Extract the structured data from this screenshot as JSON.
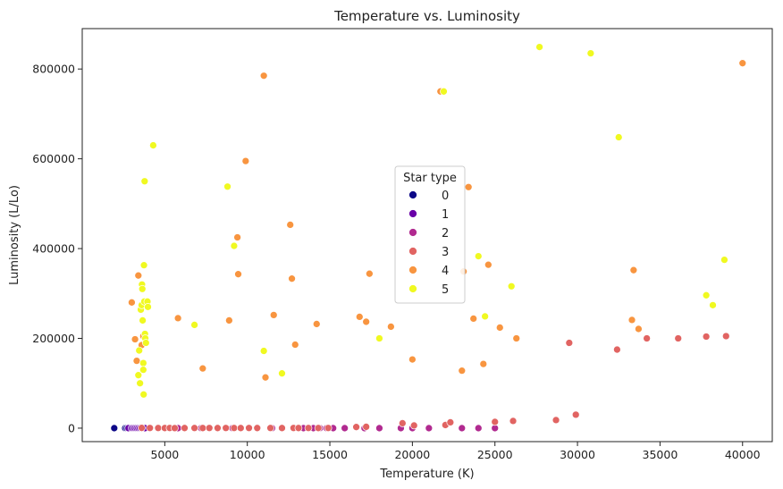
{
  "chart_data": {
    "type": "scatter",
    "title": "Temperature vs. Luminosity",
    "xlabel": "Temperature (K)",
    "ylabel": "Luminosity (L/Lo)",
    "xlim": [
      0,
      41800
    ],
    "ylim": [
      -30000,
      890000
    ],
    "xticks": [
      5000,
      10000,
      15000,
      20000,
      25000,
      30000,
      35000,
      40000
    ],
    "yticks": [
      0,
      200000,
      400000,
      600000,
      800000
    ],
    "grid": false,
    "legend": {
      "title": "Star type",
      "placement": "center"
    },
    "series": [
      {
        "name": "0",
        "color": "#0d0887",
        "points": [
          [
            1939,
            0.0001
          ],
          [
            2600,
            0.0003
          ],
          [
            2700,
            0.0004
          ],
          [
            2800,
            0.0002
          ],
          [
            2900,
            0.0005
          ],
          [
            3000,
            0.0003
          ],
          [
            3050,
            0.0002
          ],
          [
            3100,
            0.0004
          ],
          [
            3150,
            0.0001
          ],
          [
            3200,
            0.0006
          ],
          [
            3300,
            0.0005
          ],
          [
            3350,
            0.0003
          ],
          [
            3400,
            0.0002
          ],
          [
            3450,
            0.0004
          ],
          [
            3500,
            0.0003
          ],
          [
            3550,
            0.0002
          ],
          [
            3600,
            0.0001
          ]
        ]
      },
      {
        "name": "1",
        "color": "#6a00a8",
        "points": [
          [
            2800,
            0.002
          ],
          [
            3000,
            0.003
          ],
          [
            3100,
            0.002
          ],
          [
            3200,
            0.004
          ],
          [
            3300,
            0.003
          ],
          [
            3400,
            0.002
          ],
          [
            3500,
            0.005
          ],
          [
            3600,
            0.004
          ],
          [
            3700,
            0.003
          ],
          [
            3800,
            0.002
          ]
        ]
      },
      {
        "name": "2",
        "color": "#b12a90",
        "points": [
          [
            5800,
            0.001
          ],
          [
            7200,
            0.002
          ],
          [
            8700,
            0.001
          ],
          [
            9100,
            0.002
          ],
          [
            10600,
            0.001
          ],
          [
            11500,
            0.002
          ],
          [
            12100,
            0.001
          ],
          [
            12800,
            0.002
          ],
          [
            13400,
            0.001
          ],
          [
            14000,
            0.002
          ],
          [
            14400,
            0.001
          ],
          [
            14800,
            0.002
          ],
          [
            15200,
            0.001
          ],
          [
            15900,
            0.002
          ],
          [
            17100,
            0.001
          ],
          [
            18000,
            0.002
          ],
          [
            19300,
            0.001
          ],
          [
            20000,
            0.002
          ],
          [
            21000,
            0.001
          ],
          [
            23000,
            0.002
          ],
          [
            24000,
            0.001
          ],
          [
            25000,
            0.002
          ]
        ]
      },
      {
        "name": "3",
        "color": "#e16462",
        "points": [
          [
            3600,
            500
          ],
          [
            4100,
            400
          ],
          [
            4600,
            300
          ],
          [
            5000,
            200
          ],
          [
            5300,
            350
          ],
          [
            5600,
            150
          ],
          [
            6200,
            250
          ],
          [
            6800,
            300
          ],
          [
            7300,
            200
          ],
          [
            7700,
            350
          ],
          [
            8200,
            250
          ],
          [
            8700,
            400
          ],
          [
            9200,
            300
          ],
          [
            9600,
            200
          ],
          [
            10100,
            350
          ],
          [
            10600,
            250
          ],
          [
            11400,
            300
          ],
          [
            12100,
            200
          ],
          [
            12800,
            350
          ],
          [
            13100,
            250
          ],
          [
            13700,
            300
          ],
          [
            14300,
            200
          ],
          [
            14900,
            350
          ],
          [
            16600,
            2500
          ],
          [
            17200,
            3000
          ],
          [
            19400,
            11000
          ],
          [
            20100,
            6000
          ],
          [
            22000,
            7000
          ],
          [
            22300,
            13000
          ],
          [
            25000,
            14000
          ],
          [
            26100,
            16000
          ],
          [
            28700,
            18000
          ],
          [
            29900,
            30000
          ],
          [
            29500,
            190000
          ],
          [
            32400,
            175000
          ],
          [
            34200,
            200000
          ],
          [
            36100,
            200000
          ],
          [
            37800,
            204000
          ],
          [
            39000,
            205000
          ]
        ]
      },
      {
        "name": "4",
        "color": "#f89540",
        "points": [
          [
            3000,
            280000
          ],
          [
            3200,
            198000
          ],
          [
            3300,
            150000
          ],
          [
            3400,
            340000
          ],
          [
            3600,
            185000
          ],
          [
            3700,
            205000
          ],
          [
            5800,
            245000
          ],
          [
            7300,
            133000
          ],
          [
            8900,
            240000
          ],
          [
            9400,
            425000
          ],
          [
            9450,
            343000
          ],
          [
            9900,
            595000
          ],
          [
            11000,
            785000
          ],
          [
            11100,
            113000
          ],
          [
            11600,
            252000
          ],
          [
            12600,
            453000
          ],
          [
            12700,
            333000
          ],
          [
            12900,
            186000
          ],
          [
            14200,
            232000
          ],
          [
            16800,
            248000
          ],
          [
            17200,
            237000
          ],
          [
            17400,
            344000
          ],
          [
            18700,
            226000
          ],
          [
            20000,
            153000
          ],
          [
            21700,
            750000
          ],
          [
            23000,
            128000
          ],
          [
            23100,
            349000
          ],
          [
            23400,
            537000
          ],
          [
            23700,
            244000
          ],
          [
            24300,
            143000
          ],
          [
            24600,
            364000
          ],
          [
            25300,
            224000
          ],
          [
            26300,
            200000
          ],
          [
            33300,
            241000
          ],
          [
            33400,
            352000
          ],
          [
            33700,
            221000
          ],
          [
            40000,
            813000
          ]
        ]
      },
      {
        "name": "5",
        "color": "#f0f921",
        "points": [
          [
            3400,
            118000
          ],
          [
            3450,
            173000
          ],
          [
            3500,
            100000
          ],
          [
            3550,
            264000
          ],
          [
            3600,
            274000
          ],
          [
            3620,
            320000
          ],
          [
            3640,
            310000
          ],
          [
            3660,
            240000
          ],
          [
            3700,
            145000
          ],
          [
            3700,
            130000
          ],
          [
            3720,
            75000
          ],
          [
            3740,
            363000
          ],
          [
            3760,
            282000
          ],
          [
            3780,
            550000
          ],
          [
            3800,
            210000
          ],
          [
            3820,
            200000
          ],
          [
            3860,
            190000
          ],
          [
            3950,
            282000
          ],
          [
            3980,
            270000
          ],
          [
            4300,
            630000
          ],
          [
            6800,
            230000
          ],
          [
            8800,
            538000
          ],
          [
            9200,
            406000
          ],
          [
            11000,
            172000
          ],
          [
            12100,
            122000
          ],
          [
            18000,
            200000
          ],
          [
            21900,
            750000
          ],
          [
            24000,
            383000
          ],
          [
            24400,
            249000
          ],
          [
            26000,
            316000
          ],
          [
            27700,
            849000
          ],
          [
            30800,
            835000
          ],
          [
            32500,
            648000
          ],
          [
            37800,
            296000
          ],
          [
            38200,
            274000
          ],
          [
            38900,
            375000
          ]
        ]
      }
    ]
  }
}
